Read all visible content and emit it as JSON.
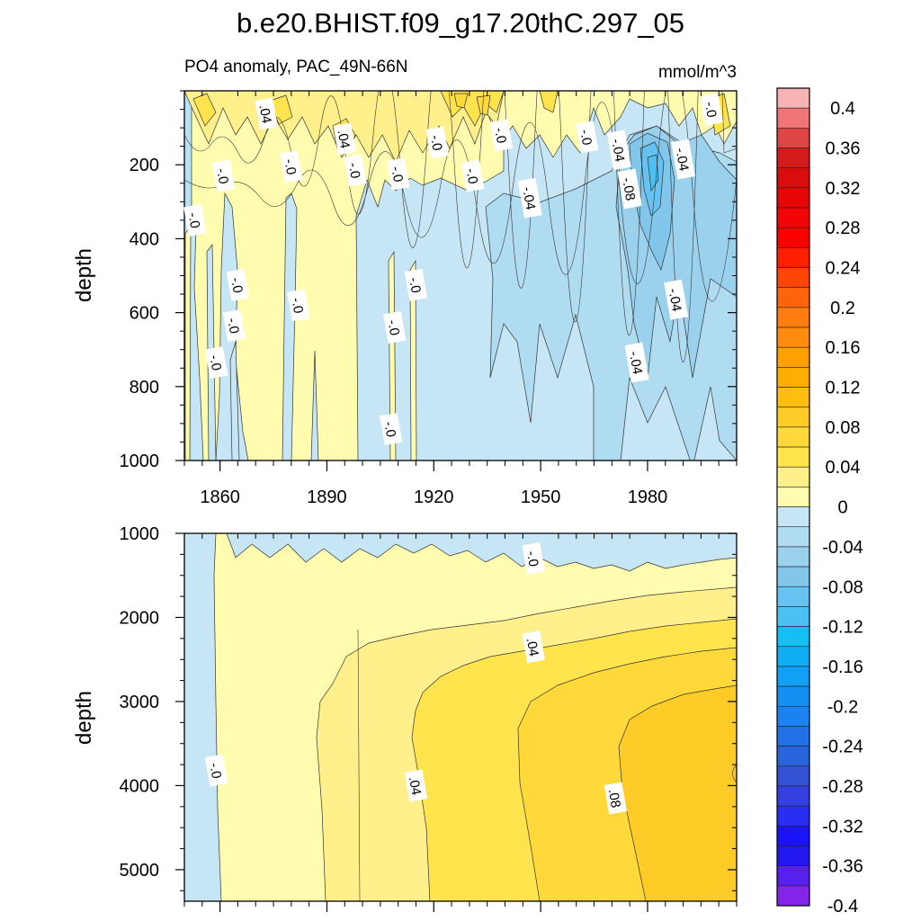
{
  "title": "b.e20.BHIST.f09_g17.20thC.297_05",
  "chart_data": [
    {
      "type": "heatmap",
      "panel": "upper",
      "left_label": "PO4 anomaly, PAC_49N-66N",
      "right_label": "mmol/m^3",
      "ylabel": "depth",
      "xlabel": "",
      "x_ticks": [
        "1860",
        "1890",
        "1920",
        "1950",
        "1980"
      ],
      "x_tick_values": [
        1860,
        1890,
        1920,
        1950,
        1980
      ],
      "xlim": [
        1850,
        2005
      ],
      "y_ticks": [
        "200",
        "400",
        "600",
        "800",
        "1000"
      ],
      "y_tick_values": [
        200,
        400,
        600,
        800,
        1000
      ],
      "ylim": [
        0,
        1000
      ],
      "y_inverted": true,
      "contour_labels": [
        {
          "text": ".04",
          "x": 1873,
          "y": 62
        },
        {
          "text": "-.0",
          "x": 1861,
          "y": 230
        },
        {
          "text": "-.0",
          "x": 1853,
          "y": 350
        },
        {
          "text": "-.0",
          "x": 1880,
          "y": 205
        },
        {
          "text": ".04",
          "x": 1895,
          "y": 130
        },
        {
          "text": "-.0",
          "x": 1898,
          "y": 215
        },
        {
          "text": "-.0",
          "x": 1910,
          "y": 225
        },
        {
          "text": "-.0",
          "x": 1921,
          "y": 140
        },
        {
          "text": "-.0",
          "x": 1939,
          "y": 120
        },
        {
          "text": "-.0",
          "x": 1931,
          "y": 230
        },
        {
          "text": "-.04",
          "x": 1947,
          "y": 290
        },
        {
          "text": "-.0",
          "x": 1963,
          "y": 125
        },
        {
          "text": "-.04",
          "x": 1972,
          "y": 160
        },
        {
          "text": "-.08",
          "x": 1975,
          "y": 265
        },
        {
          "text": "-.04",
          "x": 1990,
          "y": 185
        },
        {
          "text": "-.0",
          "x": 1998,
          "y": 50
        },
        {
          "text": "-.0",
          "x": 1865,
          "y": 525
        },
        {
          "text": "-.0",
          "x": 1864,
          "y": 635
        },
        {
          "text": "-.0",
          "x": 1859,
          "y": 735
        },
        {
          "text": "-.0",
          "x": 1882,
          "y": 580
        },
        {
          "text": "-.0",
          "x": 1915,
          "y": 525
        },
        {
          "text": "-.0",
          "x": 1909,
          "y": 640
        },
        {
          "text": "-.0",
          "x": 1908,
          "y": 915
        },
        {
          "text": "-.04",
          "x": 1988,
          "y": 565
        },
        {
          "text": "-.04",
          "x": 1977,
          "y": 735
        }
      ]
    },
    {
      "type": "heatmap",
      "panel": "lower",
      "ylabel": "depth",
      "xlabel": "",
      "xlim": [
        1850,
        2005
      ],
      "x_tick_values": [
        1860,
        1890,
        1920,
        1950,
        1980
      ],
      "y_ticks": [
        "1000",
        "2000",
        "3000",
        "4000",
        "5000"
      ],
      "y_tick_values": [
        1000,
        2000,
        3000,
        4000,
        5000
      ],
      "ylim": [
        1000,
        5375
      ],
      "y_inverted": true,
      "contour_labels": [
        {
          "text": "-.0",
          "x": 1948,
          "y": 1300
        },
        {
          "text": ".04",
          "x": 1948,
          "y": 2350
        },
        {
          "text": "-.0",
          "x": 1859,
          "y": 3820
        },
        {
          "text": ".04",
          "x": 1915,
          "y": 4000
        },
        {
          "text": ".08",
          "x": 1971,
          "y": 4150
        }
      ]
    }
  ],
  "colorbar": {
    "labels": [
      "0.4",
      "0.36",
      "0.32",
      "0.28",
      "0.24",
      "0.2",
      "0.16",
      "0.12",
      "0.08",
      "0.04",
      "0",
      "-0.04",
      "-0.08",
      "-0.12",
      "-0.16",
      "-0.2",
      "-0.24",
      "-0.28",
      "-0.32",
      "-0.36",
      "-0.4"
    ],
    "colors": [
      "#f8b4b4",
      "#f07676",
      "#e04545",
      "#d41c1c",
      "#d90d0d",
      "#e60606",
      "#f20404",
      "#fc0000",
      "#ff2000",
      "#ff4606",
      "#ff640c",
      "#ff7c10",
      "#ff8c0e",
      "#ffa000",
      "#ffae00",
      "#ffbd10",
      "#ffcb26",
      "#ffd83a",
      "#ffe44e",
      "#fff08c",
      "#fffcb0",
      "#c6e6f6",
      "#b0dcf2",
      "#9ad2ee",
      "#82c6ec",
      "#66c2f0",
      "#4cc0f0",
      "#14bff4",
      "#10aff4",
      "#12a0f4",
      "#1490f2",
      "#1c82f0",
      "#2070e6",
      "#2864dc",
      "#3452d4",
      "#3440e0",
      "#2a2ef0",
      "#1c14f8",
      "#2418f0",
      "#5820ec",
      "#8424e8"
    ]
  }
}
